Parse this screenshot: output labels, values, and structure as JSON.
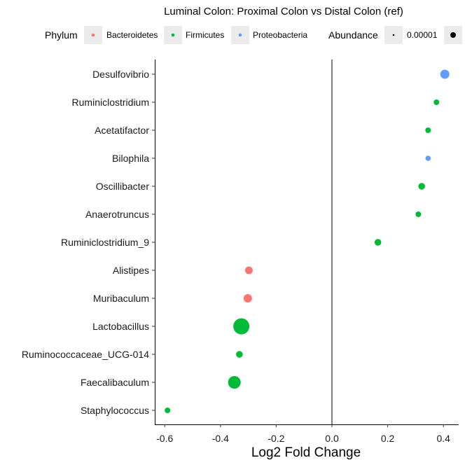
{
  "chart_data": {
    "type": "scatter",
    "title": "Luminal Colon: Proximal Colon vs Distal Colon (ref)",
    "xlabel": "Log2 Fold Change",
    "ylabel": "",
    "xlim": [
      -0.64,
      0.46
    ],
    "x_ticks": [
      -0.6,
      -0.4,
      -0.2,
      0.0,
      0.2,
      0.4
    ],
    "x_tick_labels": [
      "-0.6",
      "-0.4",
      "-0.2",
      "0.0",
      "0.2",
      "0.4"
    ],
    "grid": false,
    "reference_line_x": 0,
    "categories": [
      "Desulfovibrio",
      "Ruminiclostridium",
      "Acetatifactor",
      "Bilophila",
      "Oscillibacter",
      "Anaerotruncus",
      "Ruminiclostridium_9",
      "Alistipes",
      "Muribaculum",
      "Lactobacillus",
      "Ruminococcaceae_UCG-014",
      "Faecalibaculum",
      "Staphylococcus"
    ],
    "points": [
      {
        "genus": "Desulfovibrio",
        "x": 0.405,
        "phylum": "Proteobacteria",
        "size": 6.5
      },
      {
        "genus": "Ruminiclostridium",
        "x": 0.375,
        "phylum": "Firmicutes",
        "size": 4
      },
      {
        "genus": "Acetatifactor",
        "x": 0.345,
        "phylum": "Firmicutes",
        "size": 4
      },
      {
        "genus": "Bilophila",
        "x": 0.345,
        "phylum": "Proteobacteria",
        "size": 3.8
      },
      {
        "genus": "Oscillibacter",
        "x": 0.322,
        "phylum": "Firmicutes",
        "size": 4.8
      },
      {
        "genus": "Anaerotruncus",
        "x": 0.31,
        "phylum": "Firmicutes",
        "size": 4
      },
      {
        "genus": "Ruminiclostridium_9",
        "x": 0.165,
        "phylum": "Firmicutes",
        "size": 4.8
      },
      {
        "genus": "Alistipes",
        "x": -0.298,
        "phylum": "Bacteroidetes",
        "size": 5.5
      },
      {
        "genus": "Muribaculum",
        "x": -0.302,
        "phylum": "Bacteroidetes",
        "size": 6
      },
      {
        "genus": "Lactobacillus",
        "x": -0.325,
        "phylum": "Firmicutes",
        "size": 11.5
      },
      {
        "genus": "Ruminococcaceae_UCG-014",
        "x": -0.332,
        "phylum": "Firmicutes",
        "size": 4.8
      },
      {
        "genus": "Faecalibaculum",
        "x": -0.35,
        "phylum": "Firmicutes",
        "size": 9
      },
      {
        "genus": "Staphylococcus",
        "x": -0.59,
        "phylum": "Firmicutes",
        "size": 4
      }
    ],
    "legend": {
      "placement": "top",
      "color": {
        "title": "Phylum",
        "entries": [
          {
            "label": "Bacteroidetes",
            "color": "#F8766D"
          },
          {
            "label": "Firmicutes",
            "color": "#00BA38"
          },
          {
            "label": "Proteobacteria",
            "color": "#619CFF"
          }
        ]
      },
      "size": {
        "title": "Abundance",
        "entries": [
          {
            "label": "0.00001",
            "color": "#000000"
          },
          {
            "label": "",
            "color": "#000000"
          }
        ]
      }
    }
  }
}
